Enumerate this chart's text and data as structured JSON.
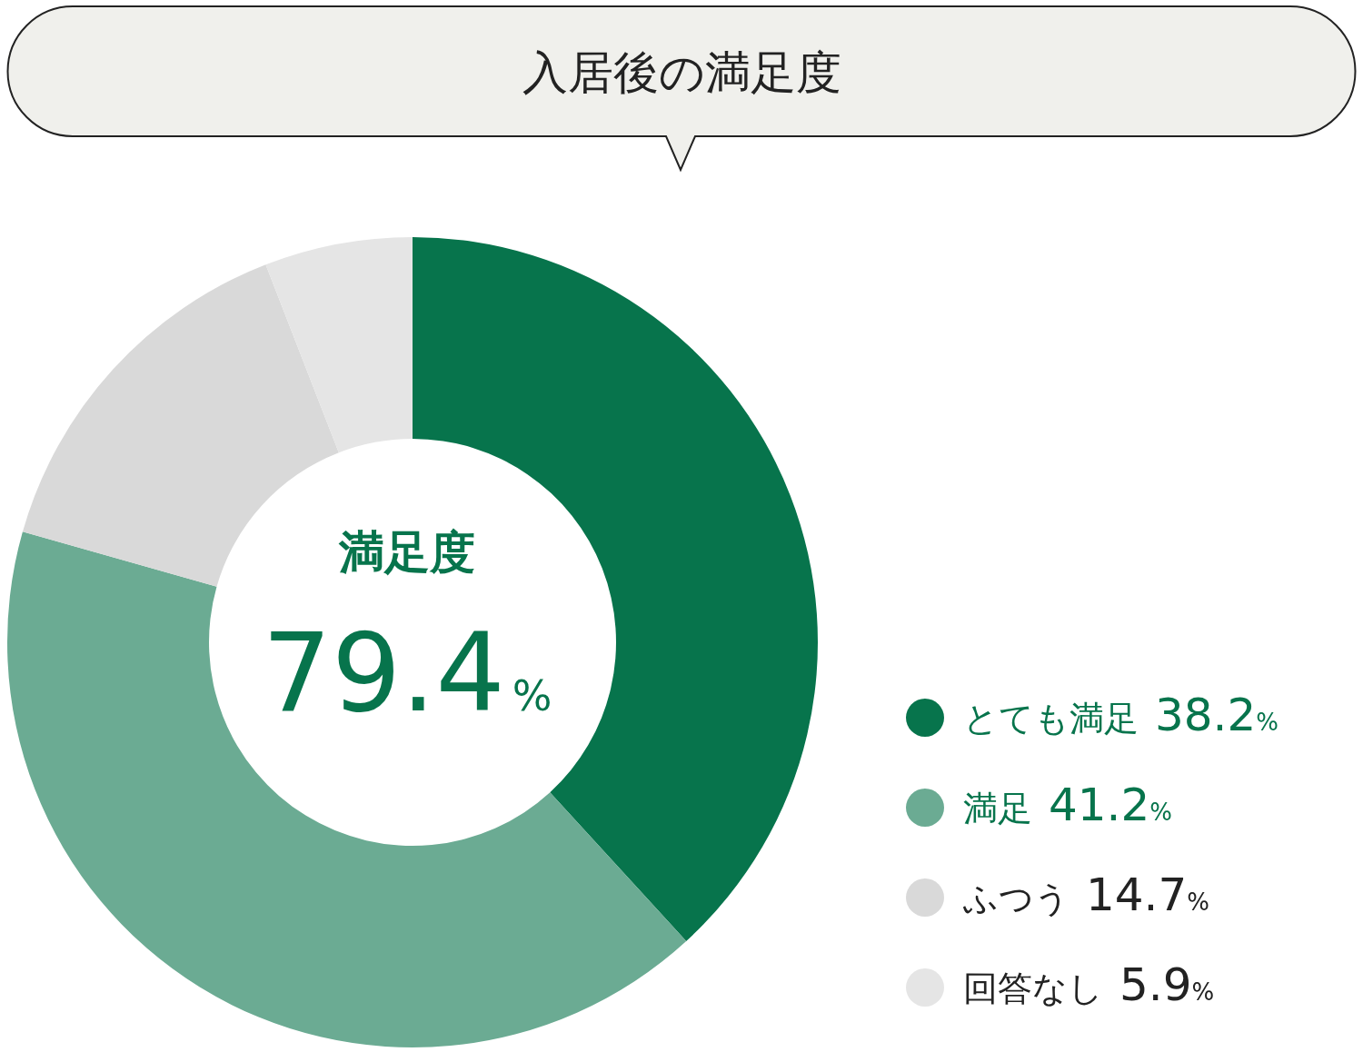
{
  "chart_data": {
    "type": "donut",
    "title": "入居後の満足度",
    "categories": [
      "とても満足",
      "満足",
      "ふつう",
      "回答なし"
    ],
    "values": [
      38.2,
      41.2,
      14.7,
      5.9
    ],
    "colors": [
      "#07744c",
      "#6bab93",
      "#d9d9d9",
      "#e5e5e5"
    ],
    "value_labels": [
      "38.2%",
      "41.2%",
      "14.7%",
      "5.9%"
    ],
    "annotations": [
      "満足度",
      "79.4%"
    ],
    "legend": "right"
  }
}
